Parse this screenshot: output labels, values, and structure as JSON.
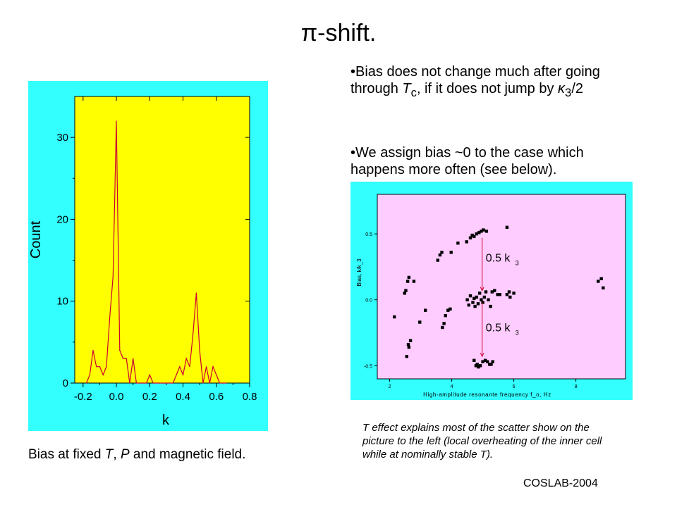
{
  "slide": {
    "title_symbol": "π",
    "title_rest": "-shift.",
    "bullet1": {
      "a": "•Bias does not change much after going through ",
      "b": "T",
      "c": "c",
      "d": ", if it does not jump by ",
      "e": "κ",
      "f": "3",
      "g": "/2"
    },
    "bullet2": "•We assign bias ~0 to the case which happens more often (see below).",
    "caption_left": {
      "a": "Bias at fixed ",
      "b": "T",
      "c": ", ",
      "d": "P",
      "e": " and magnetic field."
    },
    "caption_right": {
      "a": "T",
      "b": " effect explains most of the scatter show on the picture to the left (local overheating of the inner cell while at nominally stable ",
      "c": "T",
      "d": ")."
    },
    "footer": "COSLAB-2004"
  },
  "colors": {
    "left_bg": "#33ffff",
    "left_plot": "#ffff00",
    "left_line": "#cc0033",
    "right_bg": "#33ffff",
    "right_plot": "#ffccff",
    "marker": "#000000",
    "arrow": "#cc0033"
  },
  "chart_data": [
    {
      "type": "line",
      "title": "",
      "xlabel": "k",
      "ylabel": "Count",
      "xlim": [
        -0.25,
        0.8
      ],
      "ylim": [
        0,
        35
      ],
      "xticks": [
        -0.2,
        0.0,
        0.2,
        0.4,
        0.6,
        0.8
      ],
      "xtick_labels": [
        "-0.2",
        "0.0",
        "0.2",
        "0.4",
        "0.6",
        "0.8"
      ],
      "yticks": [
        0,
        10,
        20,
        30
      ],
      "ytick_labels": [
        "0",
        "10",
        "20",
        "30"
      ],
      "grid": false,
      "x": [
        -0.18,
        -0.16,
        -0.14,
        -0.12,
        -0.1,
        -0.08,
        -0.06,
        -0.04,
        -0.02,
        0.0,
        0.02,
        0.04,
        0.06,
        0.08,
        0.1,
        0.12,
        0.14,
        0.16,
        0.18,
        0.2,
        0.22,
        0.24,
        0.26,
        0.28,
        0.3,
        0.32,
        0.34,
        0.36,
        0.38,
        0.4,
        0.42,
        0.44,
        0.46,
        0.48,
        0.5,
        0.52,
        0.54,
        0.56,
        0.58,
        0.6,
        0.62,
        0.64,
        0.66
      ],
      "y": [
        0,
        1,
        4,
        2,
        2,
        1,
        2,
        8,
        13,
        32,
        4,
        3,
        3,
        0,
        3,
        0,
        0,
        0,
        0,
        1,
        0,
        0,
        0,
        0,
        0,
        0,
        0,
        1,
        2,
        1,
        3,
        2,
        6,
        11,
        4,
        0,
        2,
        0,
        2,
        1,
        0,
        0,
        0
      ]
    },
    {
      "type": "scatter",
      "title": "",
      "xlabel": "High-amplitude resonante frequency f_o, Hz",
      "ylabel": "Bias, k/k_3",
      "xlim": [
        1.6,
        9.6
      ],
      "ylim": [
        -0.6,
        0.8
      ],
      "xticks": [
        2,
        4,
        6,
        8
      ],
      "xtick_labels": [
        "2",
        "4",
        "6",
        "8"
      ],
      "yticks": [
        -0.5,
        0.0,
        0.5
      ],
      "ytick_labels": [
        "-0.5",
        "0.0",
        "0.5"
      ],
      "grid": false,
      "annotations": [
        "0.5 k",
        "0.5 k"
      ],
      "annotation_subscript": "3",
      "points": [
        [
          2.15,
          -0.13
        ],
        [
          2.48,
          0.05
        ],
        [
          2.52,
          0.07
        ],
        [
          2.58,
          0.14
        ],
        [
          2.62,
          0.17
        ],
        [
          2.78,
          0.14
        ],
        [
          2.55,
          -0.43
        ],
        [
          2.62,
          -0.36
        ],
        [
          2.6,
          -0.34
        ],
        [
          2.67,
          -0.31
        ],
        [
          2.97,
          -0.17
        ],
        [
          3.15,
          -0.08
        ],
        [
          3.55,
          0.3
        ],
        [
          3.62,
          0.34
        ],
        [
          3.68,
          0.36
        ],
        [
          3.7,
          -0.21
        ],
        [
          3.75,
          -0.18
        ],
        [
          3.8,
          -0.12
        ],
        [
          3.88,
          -0.08
        ],
        [
          3.95,
          -0.07
        ],
        [
          3.98,
          0.36
        ],
        [
          4.2,
          0.43
        ],
        [
          4.48,
          0.44
        ],
        [
          4.6,
          0.47
        ],
        [
          4.66,
          0.49
        ],
        [
          4.72,
          0.48
        ],
        [
          4.8,
          0.5
        ],
        [
          4.88,
          0.51
        ],
        [
          4.95,
          0.52
        ],
        [
          5.02,
          0.53
        ],
        [
          5.12,
          0.52
        ],
        [
          5.78,
          0.55
        ],
        [
          4.5,
          0.0
        ],
        [
          4.55,
          -0.04
        ],
        [
          4.6,
          0.03
        ],
        [
          4.68,
          -0.02
        ],
        [
          4.72,
          0.01
        ],
        [
          4.75,
          -0.05
        ],
        [
          4.8,
          0.02
        ],
        [
          4.85,
          -0.03
        ],
        [
          4.9,
          0.05
        ],
        [
          4.95,
          0.0
        ],
        [
          5.0,
          -0.02
        ],
        [
          5.05,
          0.02
        ],
        [
          5.1,
          0.06
        ],
        [
          5.18,
          0.0
        ],
        [
          5.25,
          -0.05
        ],
        [
          5.3,
          0.06
        ],
        [
          5.38,
          0.07
        ],
        [
          5.48,
          0.04
        ],
        [
          5.55,
          0.04
        ],
        [
          5.78,
          0.04
        ],
        [
          5.85,
          0.06
        ],
        [
          5.88,
          0.02
        ],
        [
          6.0,
          0.05
        ],
        [
          4.72,
          -0.46
        ],
        [
          4.78,
          -0.5
        ],
        [
          4.82,
          -0.49
        ],
        [
          4.86,
          -0.51
        ],
        [
          4.92,
          -0.5
        ],
        [
          5.0,
          -0.47
        ],
        [
          5.08,
          -0.46
        ],
        [
          5.15,
          -0.47
        ],
        [
          5.22,
          -0.49
        ],
        [
          5.27,
          -0.49
        ],
        [
          5.32,
          -0.47
        ],
        [
          8.72,
          0.14
        ],
        [
          8.82,
          0.16
        ],
        [
          8.88,
          0.09
        ]
      ]
    }
  ]
}
